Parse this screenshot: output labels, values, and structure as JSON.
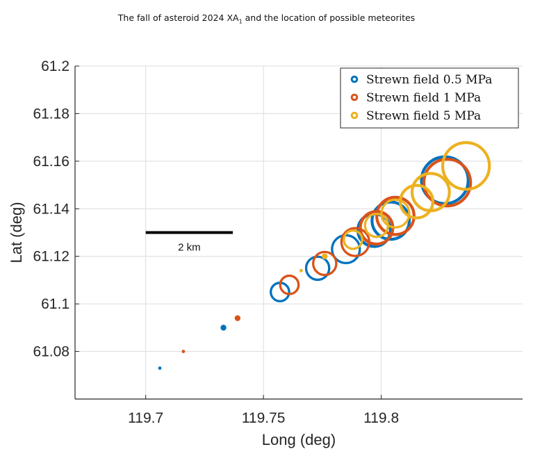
{
  "chart_data": {
    "type": "scatter",
    "title_main": "The fall of asteroid 2024 XA",
    "title_sub": "1",
    "title_rest": " and the location of possible meteorites",
    "xlabel": "Long (deg)",
    "ylabel": "Lat (deg)",
    "xlim": [
      119.67,
      119.86
    ],
    "ylim": [
      61.06,
      61.2
    ],
    "xticks": [
      119.7,
      119.75,
      119.8
    ],
    "xtick_labels": [
      "119.7",
      "119.75",
      "119.8"
    ],
    "yticks": [
      61.08,
      61.1,
      61.12,
      61.14,
      61.16,
      61.18,
      61.2
    ],
    "ytick_labels": [
      "61.08",
      "61.1",
      "61.12",
      "61.14",
      "61.16",
      "61.18",
      "61.2"
    ],
    "grid": true,
    "legend_position": "top-right",
    "scale_bar": {
      "label": "2 km",
      "x_start": 119.7,
      "x_end": 119.737,
      "y": 61.13
    },
    "series": [
      {
        "name": "Strewn field 0.5 MPa",
        "color": "#0072BD",
        "points": [
          {
            "x": 119.706,
            "y": 61.073,
            "size": 1
          },
          {
            "x": 119.733,
            "y": 61.09,
            "size": 2
          },
          {
            "x": 119.757,
            "y": 61.105,
            "size": 3
          },
          {
            "x": 119.773,
            "y": 61.115,
            "size": 4
          },
          {
            "x": 119.785,
            "y": 61.123,
            "size": 5
          },
          {
            "x": 119.797,
            "y": 61.131,
            "size": 6
          },
          {
            "x": 119.804,
            "y": 61.135,
            "size": 7
          },
          {
            "x": 119.827,
            "y": 61.152,
            "size": 9
          }
        ]
      },
      {
        "name": "Strewn field 1 MPa",
        "color": "#D95319",
        "points": [
          {
            "x": 119.716,
            "y": 61.08,
            "size": 1
          },
          {
            "x": 119.739,
            "y": 61.094,
            "size": 2
          },
          {
            "x": 119.761,
            "y": 61.108,
            "size": 3
          },
          {
            "x": 119.776,
            "y": 61.117,
            "size": 4
          },
          {
            "x": 119.789,
            "y": 61.126,
            "size": 5
          },
          {
            "x": 119.798,
            "y": 61.132,
            "size": 6
          },
          {
            "x": 119.806,
            "y": 61.137,
            "size": 7
          },
          {
            "x": 119.828,
            "y": 61.151,
            "size": 9
          }
        ]
      },
      {
        "name": "Strewn field 5 MPa",
        "color": "#EDB120",
        "points": [
          {
            "x": 119.766,
            "y": 61.114,
            "size": 1
          },
          {
            "x": 119.776,
            "y": 61.12,
            "size": 2
          },
          {
            "x": 119.788,
            "y": 61.127,
            "size": 3
          },
          {
            "x": 119.798,
            "y": 61.133,
            "size": 4
          },
          {
            "x": 119.806,
            "y": 61.138,
            "size": 5
          },
          {
            "x": 119.815,
            "y": 61.143,
            "size": 6
          },
          {
            "x": 119.821,
            "y": 61.147,
            "size": 7
          },
          {
            "x": 119.836,
            "y": 61.158,
            "size": 9
          }
        ]
      }
    ]
  }
}
